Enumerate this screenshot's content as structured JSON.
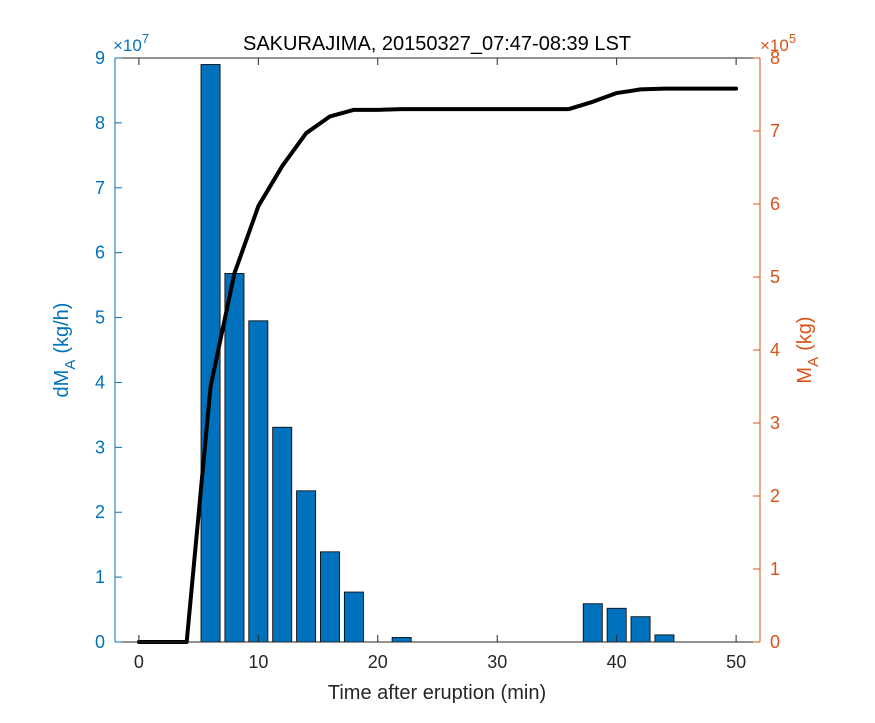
{
  "chart_data": {
    "type": "bar",
    "title": "SAKURAJIMA, 20150327_07:47-08:39 LST",
    "xlabel": "Time after eruption (min)",
    "xlim": [
      -2,
      52
    ],
    "x_ticks": [
      0,
      10,
      20,
      30,
      40,
      50
    ],
    "y_left": {
      "label_main": "dM",
      "label_sub": "A",
      "label_unit": "(kg/h)",
      "range": [
        0,
        9
      ],
      "ticks": [
        0,
        1,
        2,
        3,
        4,
        5,
        6,
        7,
        8,
        9
      ],
      "exponent_base": "×10",
      "exponent_power": "7",
      "color": "#0072BD"
    },
    "y_right": {
      "label_main": "M",
      "label_sub": "A",
      "label_unit": "(kg)",
      "range": [
        0,
        8
      ],
      "ticks": [
        0,
        1,
        2,
        3,
        4,
        5,
        6,
        7,
        8
      ],
      "exponent_base": "×10",
      "exponent_power": "5",
      "color": "#D95319"
    },
    "series": [
      {
        "type": "bar",
        "axis": "left",
        "color": "#0072BD",
        "bar_width": 1.6,
        "x": [
          6,
          8,
          10,
          12,
          14,
          16,
          18,
          22,
          38,
          40,
          42,
          44
        ],
        "values": [
          8.9,
          5.68,
          4.95,
          3.31,
          2.33,
          1.39,
          0.77,
          0.07,
          0.59,
          0.52,
          0.39,
          0.11
        ]
      },
      {
        "type": "line",
        "axis": "right",
        "color": "#000000",
        "x": [
          0,
          4,
          6,
          8,
          10,
          12,
          14,
          16,
          18,
          20,
          22,
          24,
          26,
          28,
          30,
          32,
          34,
          36,
          38,
          40,
          42,
          44,
          46,
          48,
          50
        ],
        "values": [
          0,
          0,
          3.5,
          5.05,
          5.97,
          6.52,
          6.97,
          7.2,
          7.29,
          7.29,
          7.3,
          7.3,
          7.3,
          7.3,
          7.3,
          7.3,
          7.3,
          7.3,
          7.4,
          7.52,
          7.57,
          7.58,
          7.58,
          7.58,
          7.58
        ]
      }
    ]
  }
}
